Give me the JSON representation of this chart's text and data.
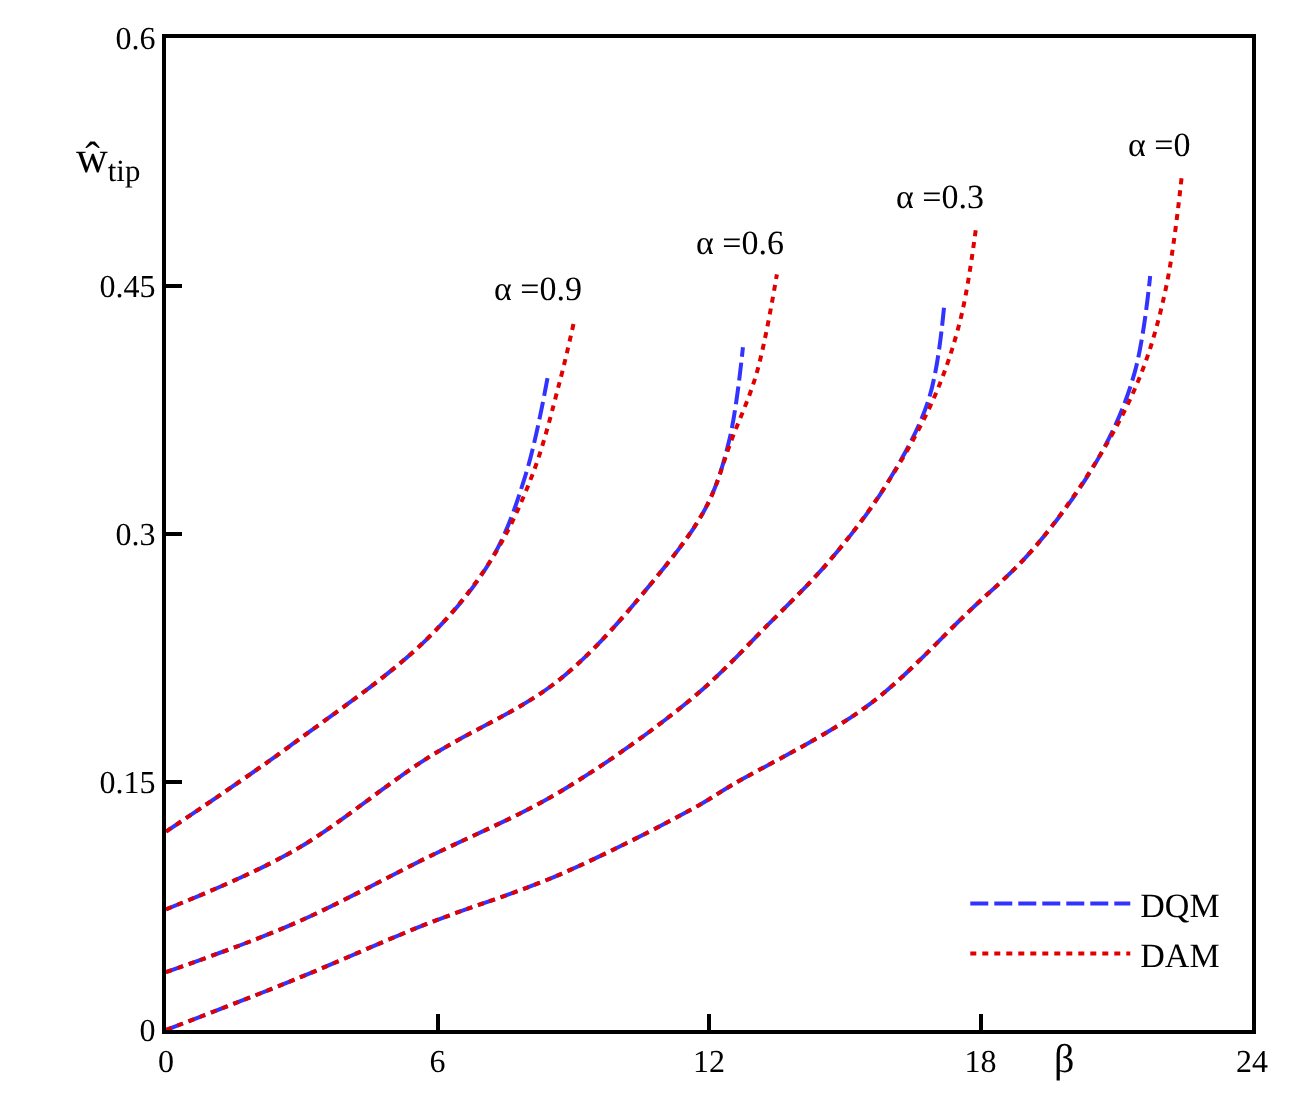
{
  "chart_data": {
    "type": "line",
    "xlabel": "β",
    "ylabel": "ŵ$_{tip}$",
    "xlim": [
      0,
      24
    ],
    "ylim": [
      0,
      0.6
    ],
    "xticks": [
      0,
      6,
      12,
      18,
      24
    ],
    "yticks": [
      0,
      0.15,
      0.3,
      0.45,
      0.6
    ],
    "legend": "bottom right",
    "series": [
      {
        "name": "DQM",
        "color": "#3333ff",
        "line_style": "dashed",
        "x": [
          0,
          2.8,
          5.75,
          8.7,
          11.65,
          12.5,
          15.5,
          17.7,
          19.2,
          20.65,
          21.4,
          21.75
        ],
        "values": [
          0,
          0.03,
          0.064,
          0.094,
          0.134,
          0.148,
          0.196,
          0.252,
          0.292,
          0.348,
          0.397,
          0.456
        ]
      },
      {
        "name": "DAM",
        "color": "#e00000",
        "line_style": "dotted",
        "x": [
          0,
          2.8,
          5.75,
          8.7,
          11.65,
          12.5,
          15.5,
          17.7,
          19.2,
          20.65,
          21.55,
          22.1,
          22.45
        ],
        "values": [
          0,
          0.03,
          0.064,
          0.094,
          0.134,
          0.148,
          0.196,
          0.252,
          0.292,
          0.348,
          0.397,
          0.449,
          0.517
        ]
      },
      {
        "color": "#3333ff",
        "line_style": "dashed",
        "x": [
          0,
          2.8,
          5.75,
          8.7,
          11.6,
          13.3,
          14.7,
          15.9,
          16.85,
          17.2
        ],
        "values": [
          0.035,
          0.064,
          0.104,
          0.144,
          0.2,
          0.245,
          0.285,
          0.329,
          0.381,
          0.439
        ]
      },
      {
        "color": "#e00000",
        "line_style": "dotted",
        "x": [
          0,
          2.8,
          5.75,
          8.7,
          11.6,
          13.3,
          14.7,
          15.9,
          16.95,
          17.55,
          17.9
        ],
        "values": [
          0.035,
          0.064,
          0.104,
          0.144,
          0.2,
          0.245,
          0.285,
          0.329,
          0.381,
          0.429,
          0.485
        ]
      },
      {
        "color": "#3333ff",
        "line_style": "dashed",
        "x": [
          0,
          2.8,
          5.75,
          8.7,
          10.9,
          11.95,
          12.45,
          12.75
        ],
        "values": [
          0.073,
          0.108,
          0.164,
          0.212,
          0.276,
          0.317,
          0.357,
          0.413
        ]
      },
      {
        "color": "#e00000",
        "line_style": "dotted",
        "x": [
          0,
          2.8,
          5.75,
          8.7,
          10.9,
          11.95,
          12.5,
          13.05,
          13.5
        ],
        "values": [
          0.073,
          0.108,
          0.164,
          0.212,
          0.276,
          0.317,
          0.357,
          0.397,
          0.457
        ]
      },
      {
        "color": "#3333ff",
        "line_style": "dashed",
        "x": [
          0,
          2.8,
          5.75,
          7.2,
          7.95,
          8.45
        ],
        "values": [
          0.12,
          0.173,
          0.236,
          0.285,
          0.336,
          0.397
        ]
      },
      {
        "color": "#e00000",
        "line_style": "dotted",
        "x": [
          0,
          2.8,
          5.75,
          7.2,
          8.1,
          8.7,
          9.03
        ],
        "values": [
          0.12,
          0.173,
          0.236,
          0.285,
          0.336,
          0.392,
          0.43
        ]
      }
    ],
    "annotations": [
      {
        "text": "α =0.9",
        "x": 9.03,
        "y": 0.43
      },
      {
        "text": "α =0.6",
        "x": 13.5,
        "y": 0.457
      },
      {
        "text": "α =0.3",
        "x": 17.9,
        "y": 0.485
      },
      {
        "text": "α =0",
        "x": 22.45,
        "y": 0.517
      }
    ]
  }
}
